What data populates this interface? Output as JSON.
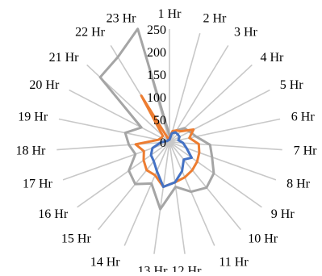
{
  "chart_data": {
    "type": "radar",
    "title": "",
    "categories": [
      "1 Hr",
      "2 Hr",
      "3 Hr",
      "4 Hr",
      "5 Hr",
      "6 Hr",
      "7 Hr",
      "8 Hr",
      "9 Hr",
      "10 Hr",
      "11 Hr",
      "12 Hr",
      "13 Hr",
      "14 Hr",
      "15 Hr",
      "16 Hr",
      "17 Hr",
      "18 Hr",
      "19 Hr",
      "20 Hr",
      "21 Hr",
      "22 Hr",
      "23 Hr"
    ],
    "radial_ticks": [
      "0",
      "50",
      "100",
      "150",
      "200",
      "250"
    ],
    "rlim": [
      0,
      250
    ],
    "grid": true,
    "legend": "none",
    "series": [
      {
        "color": "#4472C4",
        "values": [
          5,
          20,
          25,
          25,
          25,
          20,
          30,
          40,
          60,
          50,
          70,
          90,
          100,
          70,
          55,
          50,
          40,
          20,
          10,
          5,
          5,
          5,
          5
        ]
      },
      {
        "color": "#ED7D31",
        "values": [
          10,
          25,
          30,
          35,
          60,
          45,
          65,
          70,
          75,
          80,
          85,
          90,
          100,
          80,
          80,
          70,
          60,
          75,
          25,
          20,
          20,
          120,
          5
        ]
      },
      {
        "color": "#A5A5A5",
        "values": [
          15,
          20,
          30,
          45,
          50,
          60,
          90,
          100,
          120,
          130,
          120,
          100,
          150,
          100,
          120,
          110,
          80,
          90,
          100,
          70,
          210,
          220,
          260
        ]
      }
    ]
  }
}
